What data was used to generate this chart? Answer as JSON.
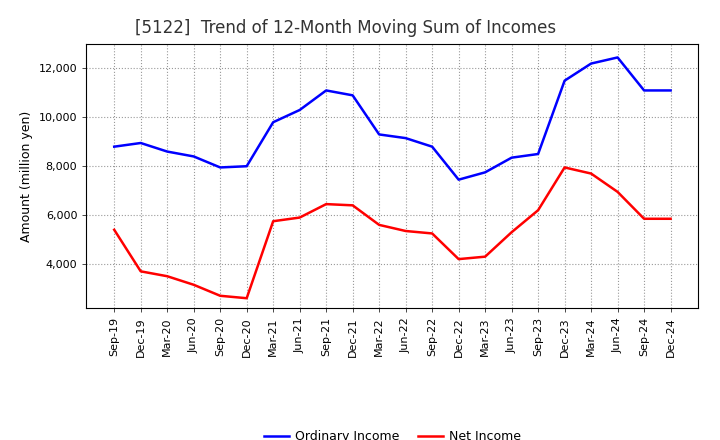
{
  "title": "[5122]  Trend of 12-Month Moving Sum of Incomes",
  "ylabel": "Amount (million yen)",
  "x_labels": [
    "Sep-19",
    "Dec-19",
    "Mar-20",
    "Jun-20",
    "Sep-20",
    "Dec-20",
    "Mar-21",
    "Jun-21",
    "Sep-21",
    "Dec-21",
    "Mar-22",
    "Jun-22",
    "Sep-22",
    "Dec-22",
    "Mar-23",
    "Jun-23",
    "Sep-23",
    "Dec-23",
    "Mar-24",
    "Jun-24",
    "Sep-24",
    "Dec-24"
  ],
  "ordinary_income": [
    8800,
    8950,
    8600,
    8400,
    7950,
    8000,
    9800,
    10300,
    11100,
    10900,
    9300,
    9150,
    8800,
    7450,
    7750,
    8350,
    8500,
    11500,
    12200,
    12450,
    11100,
    11100
  ],
  "net_income": [
    5400,
    3700,
    3500,
    3150,
    2700,
    2600,
    5750,
    5900,
    6450,
    6400,
    5600,
    5350,
    5250,
    4200,
    4300,
    5300,
    6200,
    7950,
    7700,
    6950,
    5850,
    5850
  ],
  "ordinary_color": "#0000FF",
  "net_color": "#FF0000",
  "bg_color": "#FFFFFF",
  "plot_bg_color": "#FFFFFF",
  "grid_color": "#999999",
  "ylim": [
    2200,
    13000
  ],
  "yticks": [
    4000,
    6000,
    8000,
    10000,
    12000
  ],
  "legend_ordinary": "Ordinary Income",
  "legend_net": "Net Income",
  "title_fontsize": 12,
  "ylabel_fontsize": 9,
  "tick_fontsize": 8,
  "legend_fontsize": 9
}
